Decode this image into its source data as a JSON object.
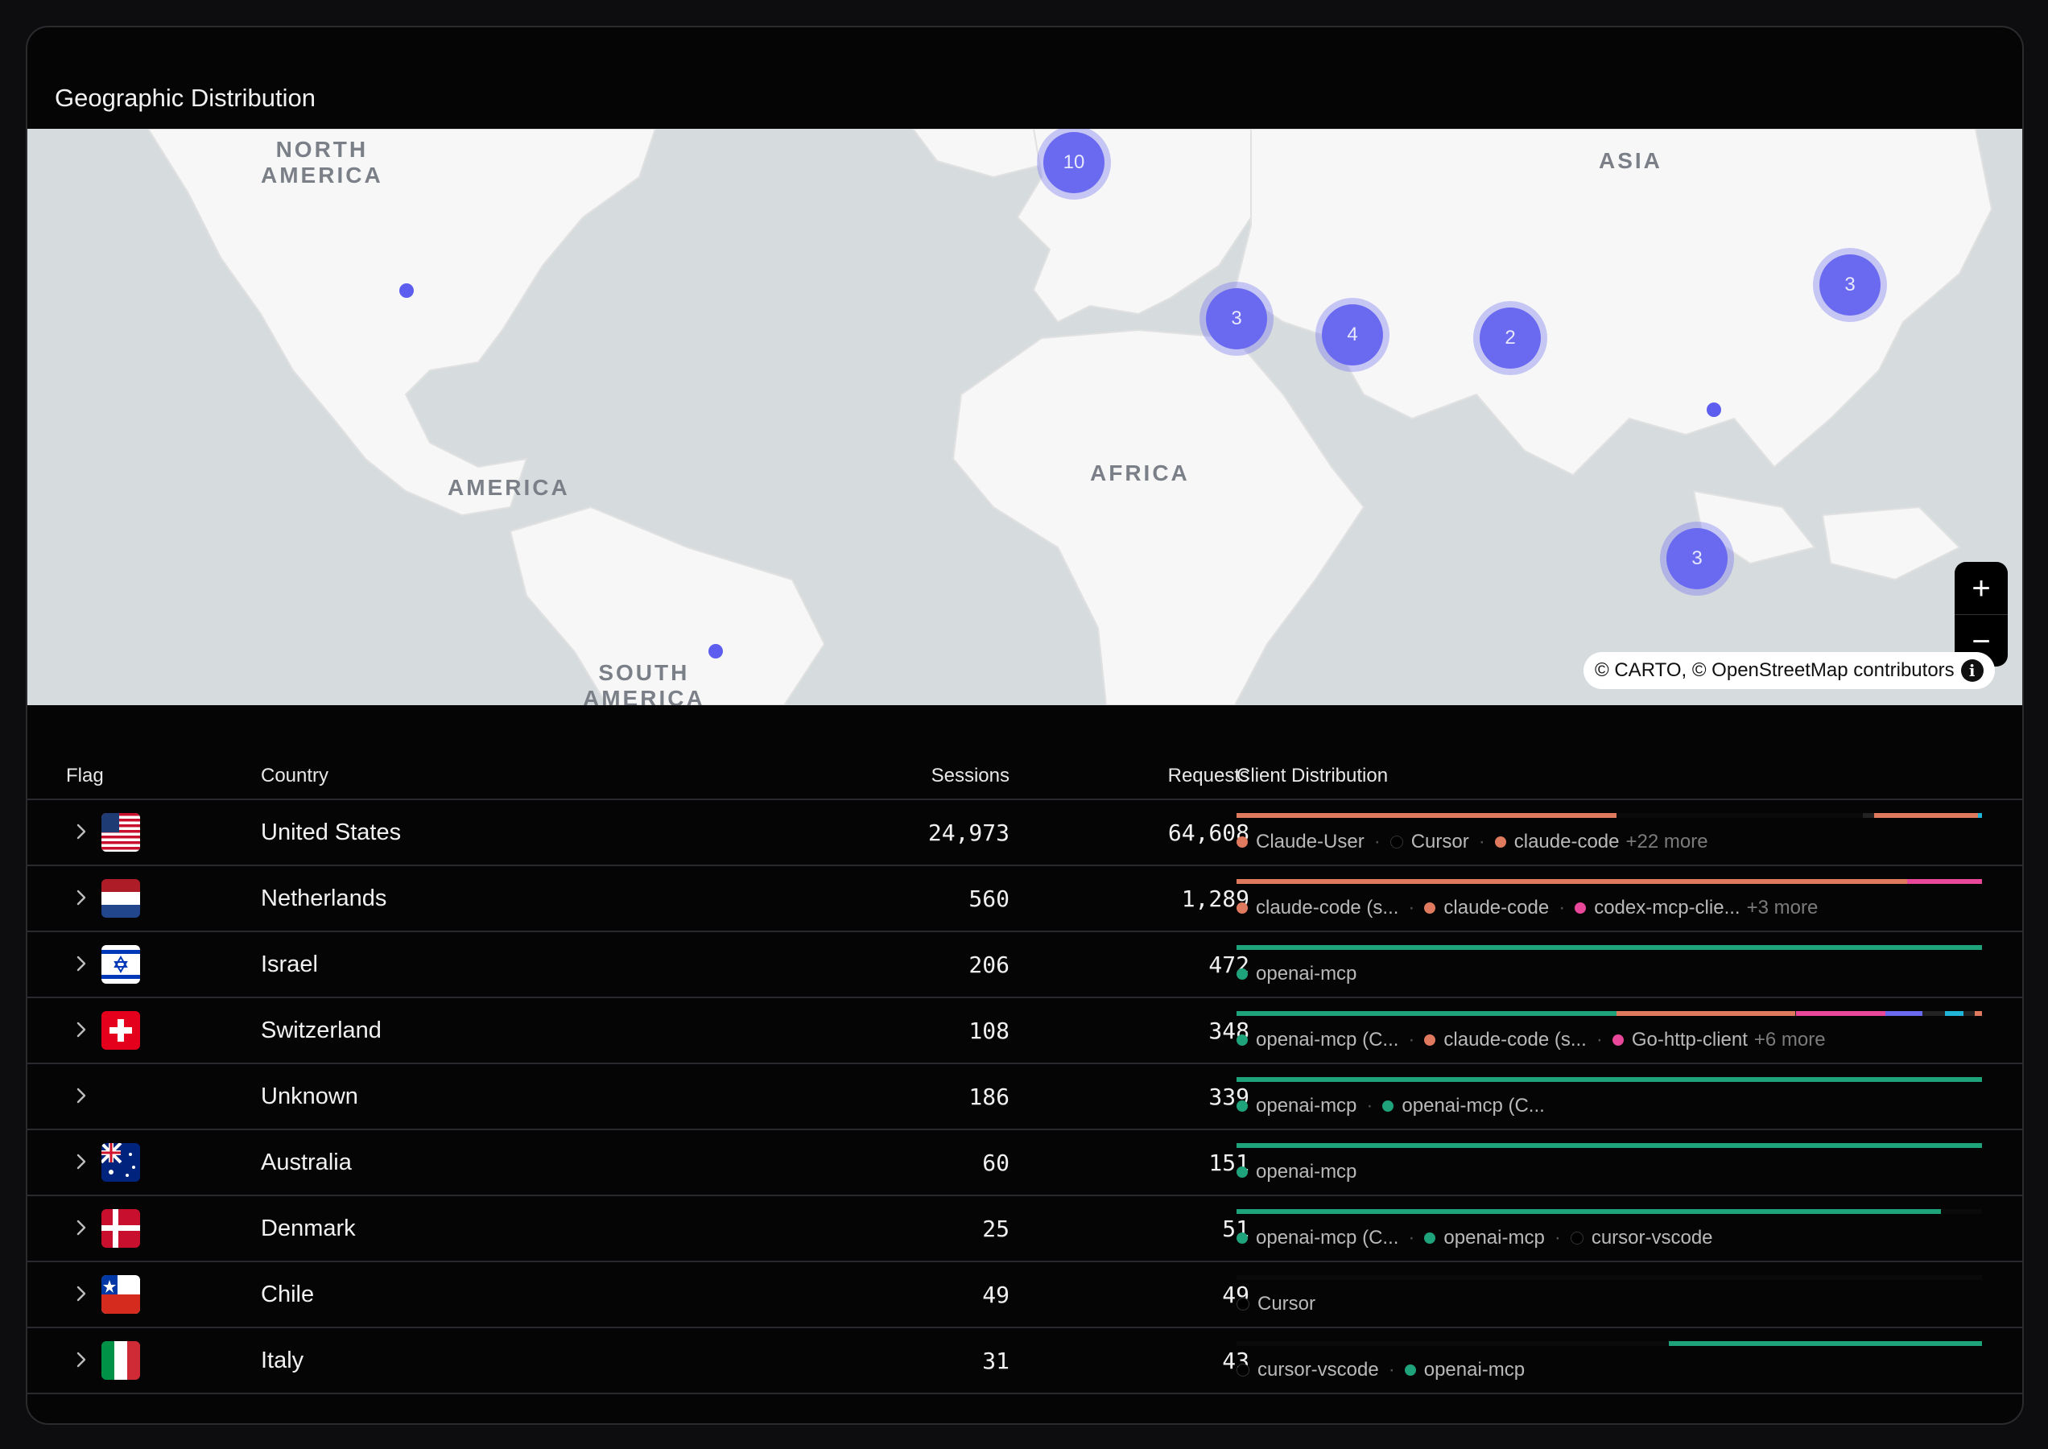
{
  "title": "Geographic Distribution",
  "map": {
    "labels": {
      "north_america": "NORTH\nAMERICA",
      "asia": "ASIA",
      "america": "AMERICA",
      "africa": "AFRICA",
      "south_america": "SOUTH\nAMERICA"
    },
    "clusters": [
      "10",
      "3",
      "4",
      "2",
      "3",
      "3"
    ],
    "zoom_in": "+",
    "zoom_out": "−",
    "attribution": "© CARTO, © OpenStreetMap contributors",
    "info": "i"
  },
  "table": {
    "headers": {
      "flag": "Flag",
      "country": "Country",
      "sessions": "Sessions",
      "requests": "Requests",
      "client": "Client Distribution"
    },
    "rows": [
      {
        "flag": "us-flag",
        "country": "United States",
        "sessions": "24,973",
        "requests": "64,608",
        "clients": [
          "Claude-User",
          "Cursor",
          "claude-code"
        ],
        "more": "+22 more"
      },
      {
        "flag": "nl-flag",
        "country": "Netherlands",
        "sessions": "560",
        "requests": "1,289",
        "clients": [
          "claude-code (s...",
          "claude-code",
          "codex-mcp-clie..."
        ],
        "more": "+3 more"
      },
      {
        "flag": "il-flag",
        "country": "Israel",
        "sessions": "206",
        "requests": "472",
        "clients": [
          "openai-mcp"
        ],
        "more": ""
      },
      {
        "flag": "ch-flag",
        "country": "Switzerland",
        "sessions": "108",
        "requests": "348",
        "clients": [
          "openai-mcp (C...",
          "claude-code (s...",
          "Go-http-client"
        ],
        "more": "+6 more"
      },
      {
        "flag": "",
        "country": "Unknown",
        "sessions": "186",
        "requests": "339",
        "clients": [
          "openai-mcp",
          "openai-mcp (C..."
        ],
        "more": ""
      },
      {
        "flag": "au-flag",
        "country": "Australia",
        "sessions": "60",
        "requests": "151",
        "clients": [
          "openai-mcp"
        ],
        "more": ""
      },
      {
        "flag": "dk-flag",
        "country": "Denmark",
        "sessions": "25",
        "requests": "51",
        "clients": [
          "openai-mcp (C...",
          "openai-mcp",
          "cursor-vscode"
        ],
        "more": ""
      },
      {
        "flag": "cl-flag",
        "country": "Chile",
        "sessions": "49",
        "requests": "49",
        "clients": [
          "Cursor"
        ],
        "more": ""
      },
      {
        "flag": "it-flag",
        "country": "Italy",
        "sessions": "31",
        "requests": "43",
        "clients": [
          "cursor-vscode",
          "openai-mcp"
        ],
        "more": ""
      }
    ]
  },
  "colors": {
    "claude": "#e07a5f",
    "cursor": "#0a0a0a",
    "openai": "#1fa37a",
    "pink": "#e8479a",
    "purple": "#6a6af0",
    "cyan": "#20b5d6",
    "cluster": "#6a6af0"
  }
}
